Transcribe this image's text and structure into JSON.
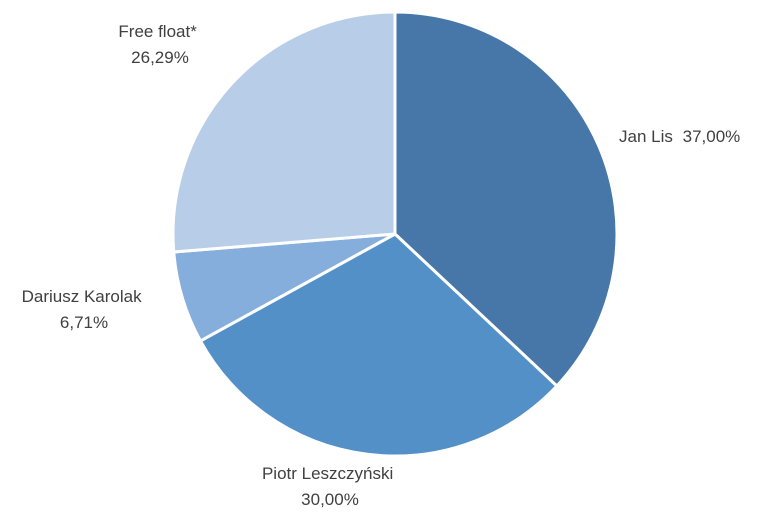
{
  "chart_data": {
    "type": "pie",
    "start_angle_deg": 0,
    "direction": "clockwise",
    "slices": [
      {
        "label": "Jan Lis",
        "value": 37.0,
        "display": "37,00%",
        "color": "#4677a8"
      },
      {
        "label": "Piotr Leszczyński",
        "value": 30.0,
        "display": "30,00%",
        "color": "#5390c8"
      },
      {
        "label": "Dariusz Karolak",
        "value": 6.71,
        "display": "6,71%",
        "color": "#85aedc"
      },
      {
        "label": "Free float*",
        "value": 26.29,
        "display": "26,29%",
        "color": "#b8cde8"
      }
    ]
  }
}
